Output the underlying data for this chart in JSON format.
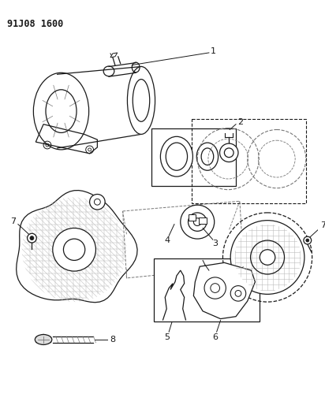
{
  "title": "91J08 1600",
  "bg_color": "#ffffff",
  "title_fontsize": 8.5,
  "fig_width": 4.12,
  "fig_height": 5.33,
  "dpi": 100,
  "line_color": "#1a1a1a",
  "light_gray": "#777777",
  "very_light": "#bbbbbb"
}
